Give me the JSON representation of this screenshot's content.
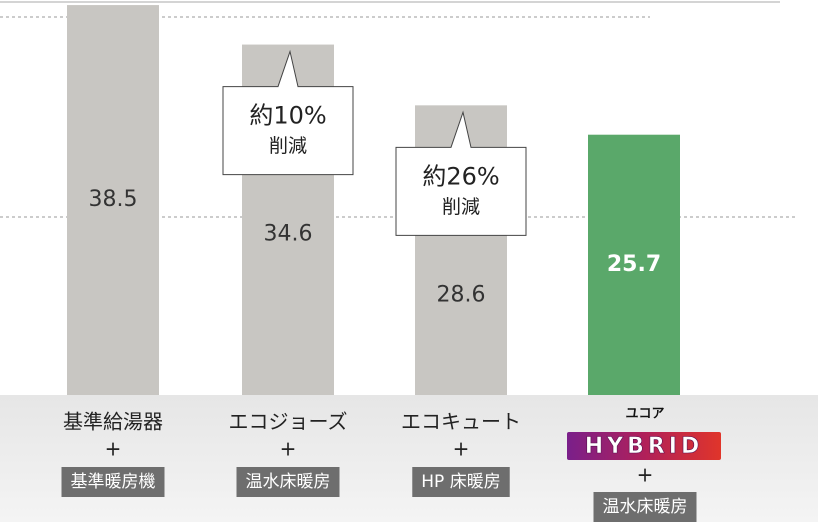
{
  "chart_data": {
    "type": "bar",
    "categories": [
      "基準給湯器",
      "エコジョーズ",
      "エコキュート",
      "ユコア"
    ],
    "brand": "HYBRID",
    "plus": "+",
    "heating": [
      "基準暖房機",
      "温水床暖房",
      "HP 床暖房",
      "温水床暖房"
    ],
    "values": [
      38.5,
      34.6,
      28.6,
      25.7
    ],
    "colors": [
      "#c8c6c2",
      "#c8c6c2",
      "#c8c6c2",
      "#5aa86a"
    ],
    "ylim": [
      0,
      39
    ],
    "annotations": [
      {
        "main": "約10%",
        "sub": "削減"
      },
      {
        "main": "約26%",
        "sub": "削減"
      }
    ]
  }
}
